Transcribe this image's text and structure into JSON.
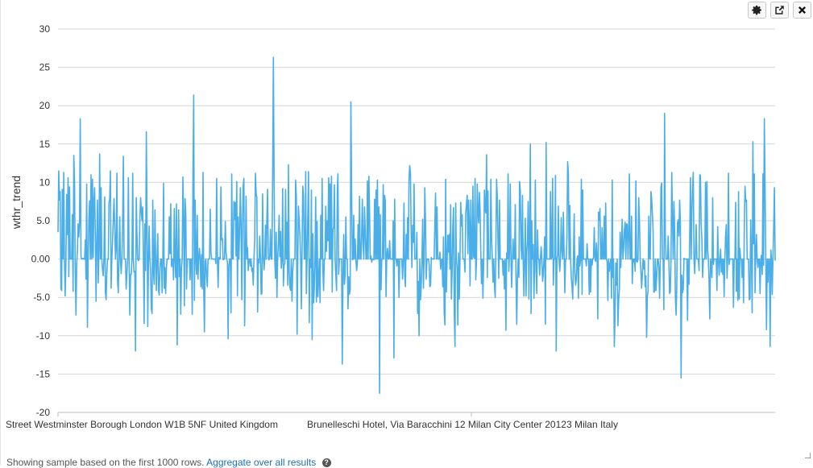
{
  "toolbar": {
    "settings_icon": "gear-icon",
    "popout_icon": "external-link-icon",
    "close_icon": "close-icon"
  },
  "footer": {
    "sample_text": "Showing sample based on the first 1000 rows.",
    "aggregate_link": "Aggregate over all results"
  },
  "colors": {
    "series": "#4aaee8",
    "grid": "#d6d6d6",
    "axis_text": "#333333"
  },
  "chart_data": {
    "type": "line",
    "ylabel": "wthr_trend",
    "ylim": [
      -20,
      30
    ],
    "yticks": [
      -20,
      -15,
      -10,
      -5.0,
      0.0,
      5.0,
      10,
      15,
      20,
      25,
      30
    ],
    "ytick_labels": [
      "-20",
      "-15",
      "-10",
      "-5.0",
      "0.00",
      "5.0",
      "10",
      "15",
      "20",
      "25",
      "30"
    ],
    "xtick_labels": [
      "Street Westminster Borough London W1B 5NF United Kingdom",
      "Brunelleschi Hotel, Via Baracchini 12 Milan City Center 20123 Milan Italy"
    ],
    "grid": true,
    "n_points": 1000,
    "peaks": [
      {
        "x": 3,
        "y": 8.8
      },
      {
        "x": 8,
        "y": 11.3
      },
      {
        "x": 22,
        "y": 13.5
      },
      {
        "x": 25,
        "y": -7.3
      },
      {
        "x": 31,
        "y": 18.3
      },
      {
        "x": 41,
        "y": -8.9
      },
      {
        "x": 58,
        "y": 13.7
      },
      {
        "x": 73,
        "y": 11.5
      },
      {
        "x": 91,
        "y": 13.4
      },
      {
        "x": 100,
        "y": -7.3
      },
      {
        "x": 108,
        "y": -12.0
      },
      {
        "x": 123,
        "y": 16.6
      },
      {
        "x": 166,
        "y": -11.2
      },
      {
        "x": 189,
        "y": 21.4
      },
      {
        "x": 204,
        "y": -9.5
      },
      {
        "x": 237,
        "y": -10.4
      },
      {
        "x": 275,
        "y": 11.2
      },
      {
        "x": 300,
        "y": 26.3
      },
      {
        "x": 321,
        "y": 12.3
      },
      {
        "x": 333,
        "y": -9.8
      },
      {
        "x": 354,
        "y": -10.5
      },
      {
        "x": 396,
        "y": -13.7
      },
      {
        "x": 408,
        "y": 20.5
      },
      {
        "x": 448,
        "y": -17.5
      },
      {
        "x": 468,
        "y": -12.9
      },
      {
        "x": 490,
        "y": 12.2
      },
      {
        "x": 503,
        "y": -10.0
      },
      {
        "x": 553,
        "y": -11.4
      },
      {
        "x": 597,
        "y": 13.6
      },
      {
        "x": 624,
        "y": -9.3
      },
      {
        "x": 658,
        "y": 15.0
      },
      {
        "x": 680,
        "y": 15.2
      },
      {
        "x": 694,
        "y": -12.0
      },
      {
        "x": 710,
        "y": 12.7
      },
      {
        "x": 775,
        "y": -11.4
      },
      {
        "x": 820,
        "y": -10.2
      },
      {
        "x": 845,
        "y": 19.0
      },
      {
        "x": 868,
        "y": -15.5
      },
      {
        "x": 877,
        "y": -8.0
      },
      {
        "x": 912,
        "y": 8.0
      },
      {
        "x": 934,
        "y": 11.2
      },
      {
        "x": 968,
        "y": 15.3
      },
      {
        "x": 984,
        "y": 18.3
      },
      {
        "x": 987,
        "y": -9.2
      },
      {
        "x": 992,
        "y": -11.4
      },
      {
        "x": 998,
        "y": 9.3
      }
    ]
  }
}
